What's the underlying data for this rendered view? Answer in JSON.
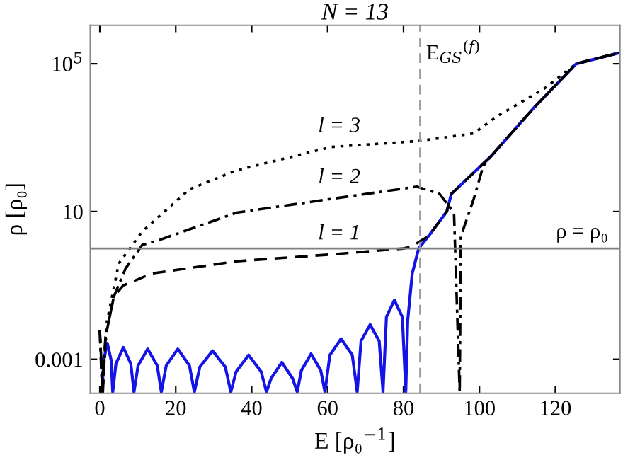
{
  "chart_data": {
    "type": "line",
    "title": "N = 13",
    "xlabel": "E [ρ₀$^{−1}$]",
    "ylabel": "ρ [ρ₀]",
    "log": "y",
    "xlim": [
      -2.5,
      137
    ],
    "ylim": [
      0.00012,
      1100000
    ],
    "xticks": [
      0,
      20,
      40,
      60,
      80,
      100,
      120
    ],
    "yticks": [
      0.001,
      10,
      {
        "value": 100000,
        "label": "10$^{5}$"
      }
    ],
    "grid": false,
    "legend": false,
    "marker": "none",
    "ref_lines": [
      {
        "axis": "y",
        "value": 1,
        "label": "ρ = ρ₀",
        "color": "#808080",
        "line_style": "solid"
      },
      {
        "axis": "x",
        "value": 84.4,
        "label": "E$_{GS}$$^{(f)}$",
        "color": "#999999",
        "line_style": "dashed"
      }
    ],
    "series": [
      {
        "color": "#1414e6",
        "line_style": "solid",
        "x": [
          0.6,
          1.02,
          2.0,
          2.98,
          3.4,
          4.24,
          6.2,
          8.16,
          9.0,
          10.08,
          12.6,
          15.12,
          16.2,
          17.5,
          20.55,
          23.6,
          24.9,
          26.34,
          29.7,
          33.06,
          34.5,
          35.9,
          39.2,
          42.5,
          43.9,
          45.1,
          47.95,
          50.8,
          52,
          53.1,
          55.65,
          58.2,
          59.3,
          60.6,
          63.55,
          66.5,
          67.8,
          68.8,
          71.2,
          73.6,
          74.6,
          75.5,
          77.6,
          79.7,
          80.6,
          81.1,
          82.3,
          84,
          86.5,
          91.4,
          92.6,
          103,
          114,
          125.5,
          137
        ],
        "values": [
          0.00013,
          0.00095,
          0.0027,
          0.00095,
          0.00013,
          0.00076,
          0.0021,
          0.00076,
          0.00013,
          0.00068,
          0.0019,
          0.00068,
          0.00013,
          0.00068,
          0.0019,
          0.00068,
          0.00013,
          0.00062,
          0.0017,
          0.00062,
          0.00013,
          0.00046,
          0.0013,
          0.00046,
          0.00013,
          0.0003,
          0.00083,
          0.0003,
          0.00013,
          0.0005,
          0.0014,
          0.0005,
          0.00013,
          0.0013,
          0.0036,
          0.0013,
          0.00013,
          0.0031,
          0.0087,
          0.0031,
          0.00013,
          0.014,
          0.04,
          0.014,
          0.00013,
          0.011,
          0.21,
          1,
          2.1,
          10,
          30,
          310,
          5900,
          100000,
          200000
        ]
      },
      {
        "name": "l = 1",
        "color": "#000000",
        "line_style": "dashed",
        "x": [
          0,
          0.8,
          1.5,
          3.7,
          6.2,
          13.7,
          36,
          61,
          80,
          82,
          84.5,
          86.5,
          91.4,
          92.6,
          103,
          114,
          125.5,
          137
        ],
        "values": [
          0.006,
          0.00013,
          0.004,
          0.05,
          0.1,
          0.21,
          0.45,
          0.69,
          1.0,
          1.1,
          1.6,
          2.1,
          10,
          30,
          310,
          5900,
          100000,
          200000
        ]
      },
      {
        "name": "l = 2",
        "color": "#000000",
        "line_style": "dashdot",
        "x": [
          0,
          0.6,
          1.5,
          3.7,
          6.8,
          11.2,
          15,
          36,
          61,
          83.5,
          89.5,
          93.3,
          94.8,
          95.1,
          98.5,
          101,
          103,
          114,
          125.5,
          137
        ],
        "values": [
          0.006,
          0.00013,
          0.004,
          0.05,
          0.29,
          1.25,
          1.6,
          9.3,
          22,
          47,
          30,
          9.3,
          0.00013,
          2.1,
          22,
          170,
          310,
          5900,
          100000,
          200000
        ]
      },
      {
        "name": "l = 3",
        "color": "#000000",
        "line_style": "dotted",
        "x": [
          0,
          0.7,
          1.9,
          5,
          11.2,
          23.6,
          36,
          61,
          84,
          98.5,
          104.5,
          117,
          125.5,
          137
        ],
        "values": [
          0.006,
          0.00013,
          0.011,
          0.39,
          2.9,
          40,
          130,
          560,
          810,
          1300,
          3700,
          21000,
          100000,
          200000
        ]
      }
    ]
  }
}
